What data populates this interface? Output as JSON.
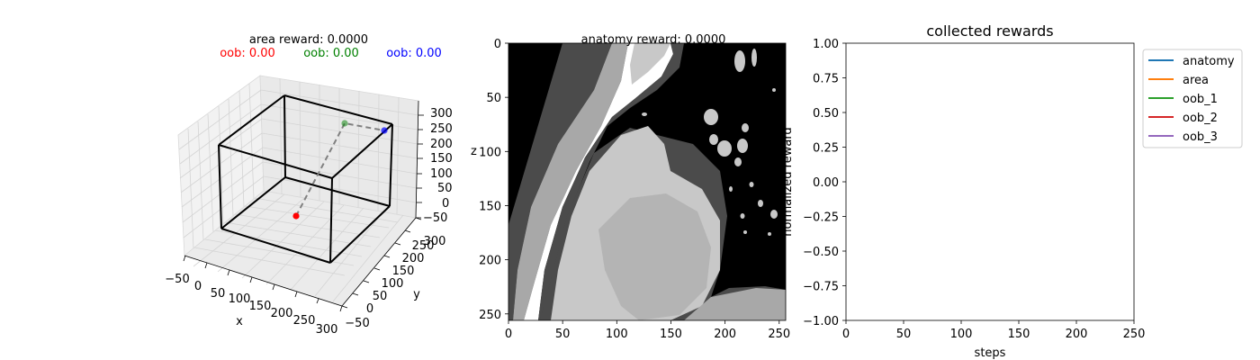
{
  "colors": {
    "red": "#ff0000",
    "green": "#008000",
    "blue": "#0000ff",
    "box": "#000000",
    "trajectory": "#808080",
    "anatomy": "#1f77b4",
    "area": "#ff7f0e",
    "oob_1": "#2ca02c",
    "oob_2": "#d62728",
    "oob_3": "#9467bd"
  },
  "panel3d": {
    "title": "area reward: 0.0000",
    "oob_labels": [
      "oob: 0.00",
      "oob: 0.00",
      "oob: 0.00"
    ],
    "xlabel": "x",
    "ylabel": "y",
    "zlabel": "z",
    "x_ticks": [
      "−50",
      "0",
      "50",
      "100",
      "150",
      "200",
      "250",
      "300"
    ],
    "y_ticks": [
      "−50",
      "0",
      "50",
      "100",
      "150",
      "200",
      "250",
      "300"
    ],
    "z_ticks": [
      "−50",
      "0",
      "50",
      "100",
      "150",
      "200",
      "250",
      "300"
    ]
  },
  "panel_image": {
    "title": "anatomy reward: 0.0000",
    "x_ticks": [
      "0",
      "50",
      "100",
      "150",
      "200",
      "250"
    ],
    "y_ticks": [
      "0",
      "50",
      "100",
      "150",
      "200",
      "250"
    ]
  },
  "chart_data": {
    "type": "line",
    "title": "collected rewards",
    "xlabel": "steps",
    "ylabel": "normalized reward",
    "xlim": [
      0,
      250
    ],
    "ylim": [
      -1.0,
      1.0
    ],
    "x_ticks": [
      "0",
      "50",
      "100",
      "150",
      "200",
      "250"
    ],
    "y_ticks": [
      "1.00",
      "0.75",
      "0.50",
      "0.25",
      "0.00",
      "−0.25",
      "−0.50",
      "−0.75",
      "−1.00"
    ],
    "series": [
      {
        "name": "anatomy",
        "values": []
      },
      {
        "name": "area",
        "values": []
      },
      {
        "name": "oob_1",
        "values": []
      },
      {
        "name": "oob_2",
        "values": []
      },
      {
        "name": "oob_3",
        "values": []
      }
    ]
  }
}
